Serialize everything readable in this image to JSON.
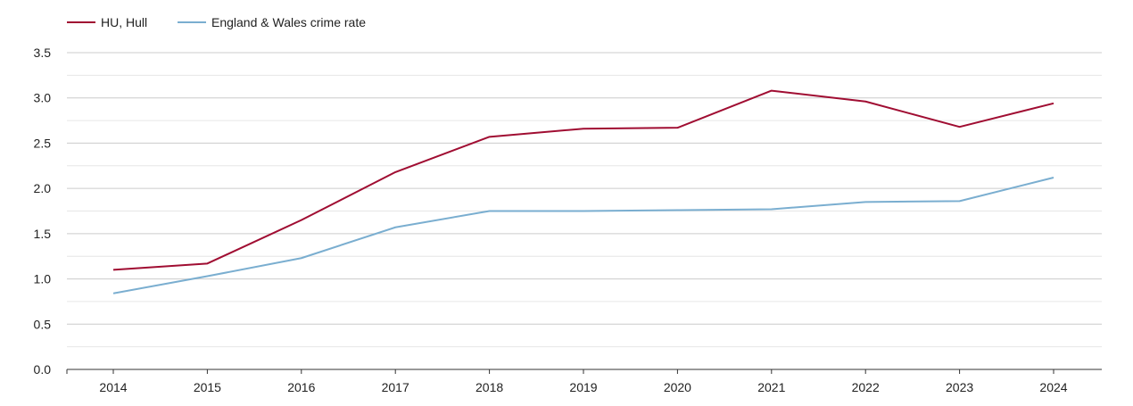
{
  "chart_data": {
    "type": "line",
    "title": "",
    "xlabel": "",
    "ylabel": "",
    "x": [
      "2014",
      "2015",
      "2016",
      "2017",
      "2018",
      "2019",
      "2020",
      "2021",
      "2022",
      "2023",
      "2024"
    ],
    "ylim": [
      0,
      3.5
    ],
    "yticks": [
      "0.0",
      "0.5",
      "1.0",
      "1.5",
      "2.0",
      "2.5",
      "3.0",
      "3.5"
    ],
    "grid": true,
    "legend_position": "top-left",
    "series": [
      {
        "name": "HU, Hull",
        "color": "#a00d32",
        "values": [
          1.1,
          1.17,
          1.65,
          2.18,
          2.57,
          2.66,
          2.67,
          3.08,
          2.96,
          2.68,
          2.94
        ]
      },
      {
        "name": "England & Wales crime rate",
        "color": "#7aaed0",
        "values": [
          0.84,
          1.03,
          1.23,
          1.57,
          1.75,
          1.75,
          1.76,
          1.77,
          1.85,
          1.86,
          2.12
        ]
      }
    ]
  }
}
